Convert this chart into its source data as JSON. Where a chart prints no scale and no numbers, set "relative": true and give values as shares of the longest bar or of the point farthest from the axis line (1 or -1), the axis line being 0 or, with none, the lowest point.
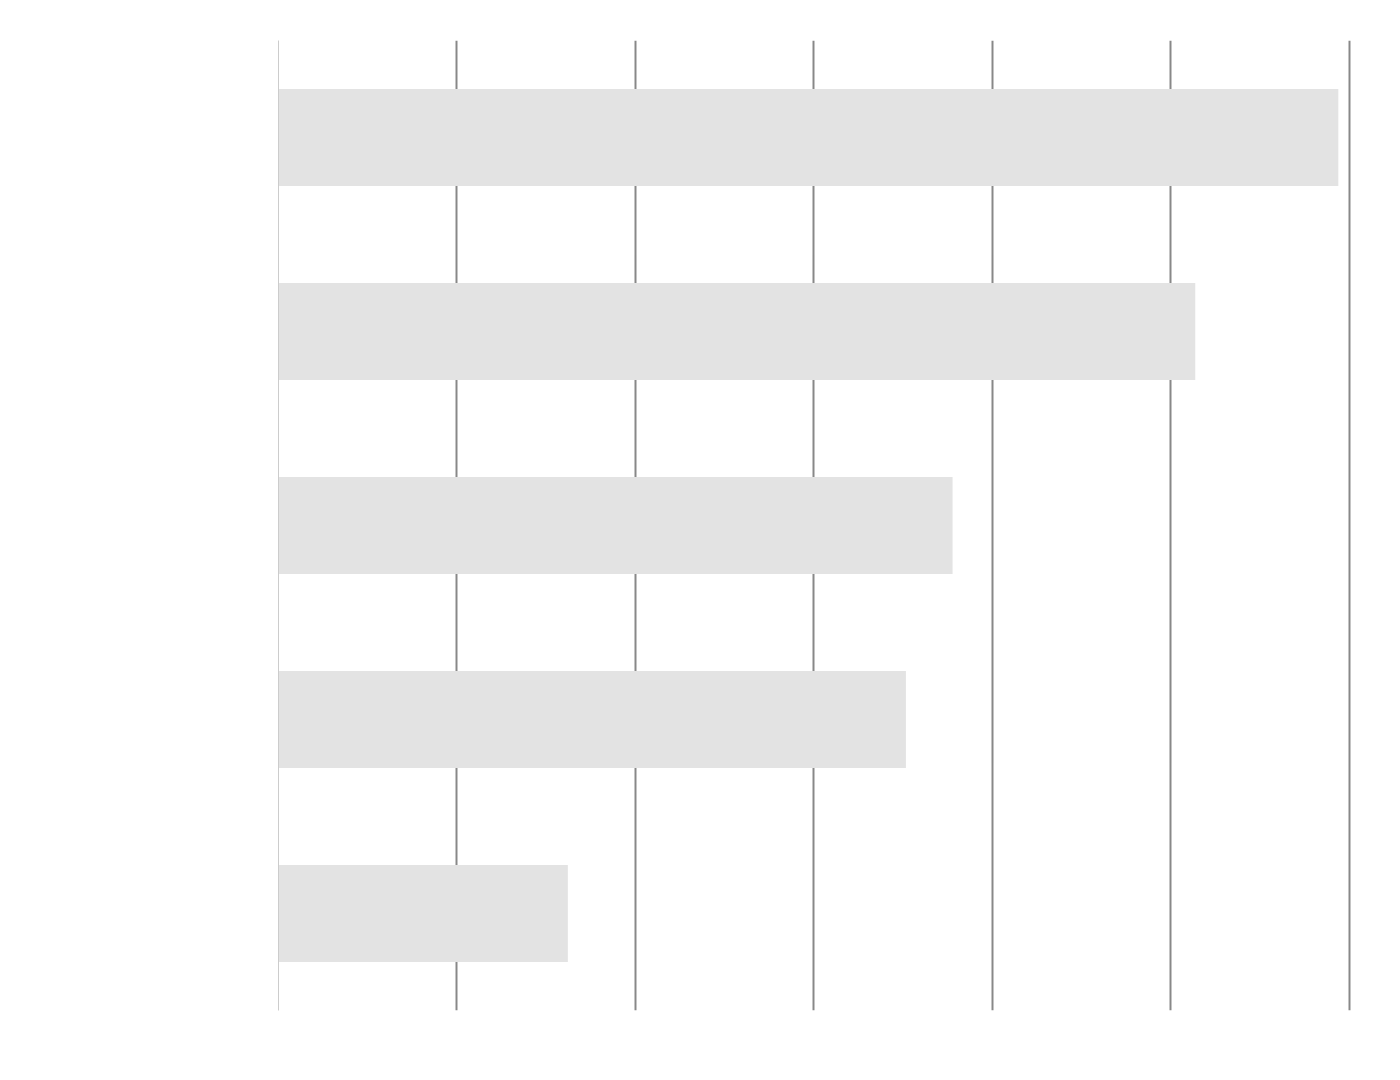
{
  "chart_data": {
    "type": "bar",
    "orientation": "horizontal",
    "relative": true,
    "categories": [
      null,
      null,
      null,
      null,
      null
    ],
    "values": [
      1,
      0.865,
      0.636,
      0.592,
      0.273
    ],
    "color": "#e3e3e3",
    "grid": "x"
  }
}
